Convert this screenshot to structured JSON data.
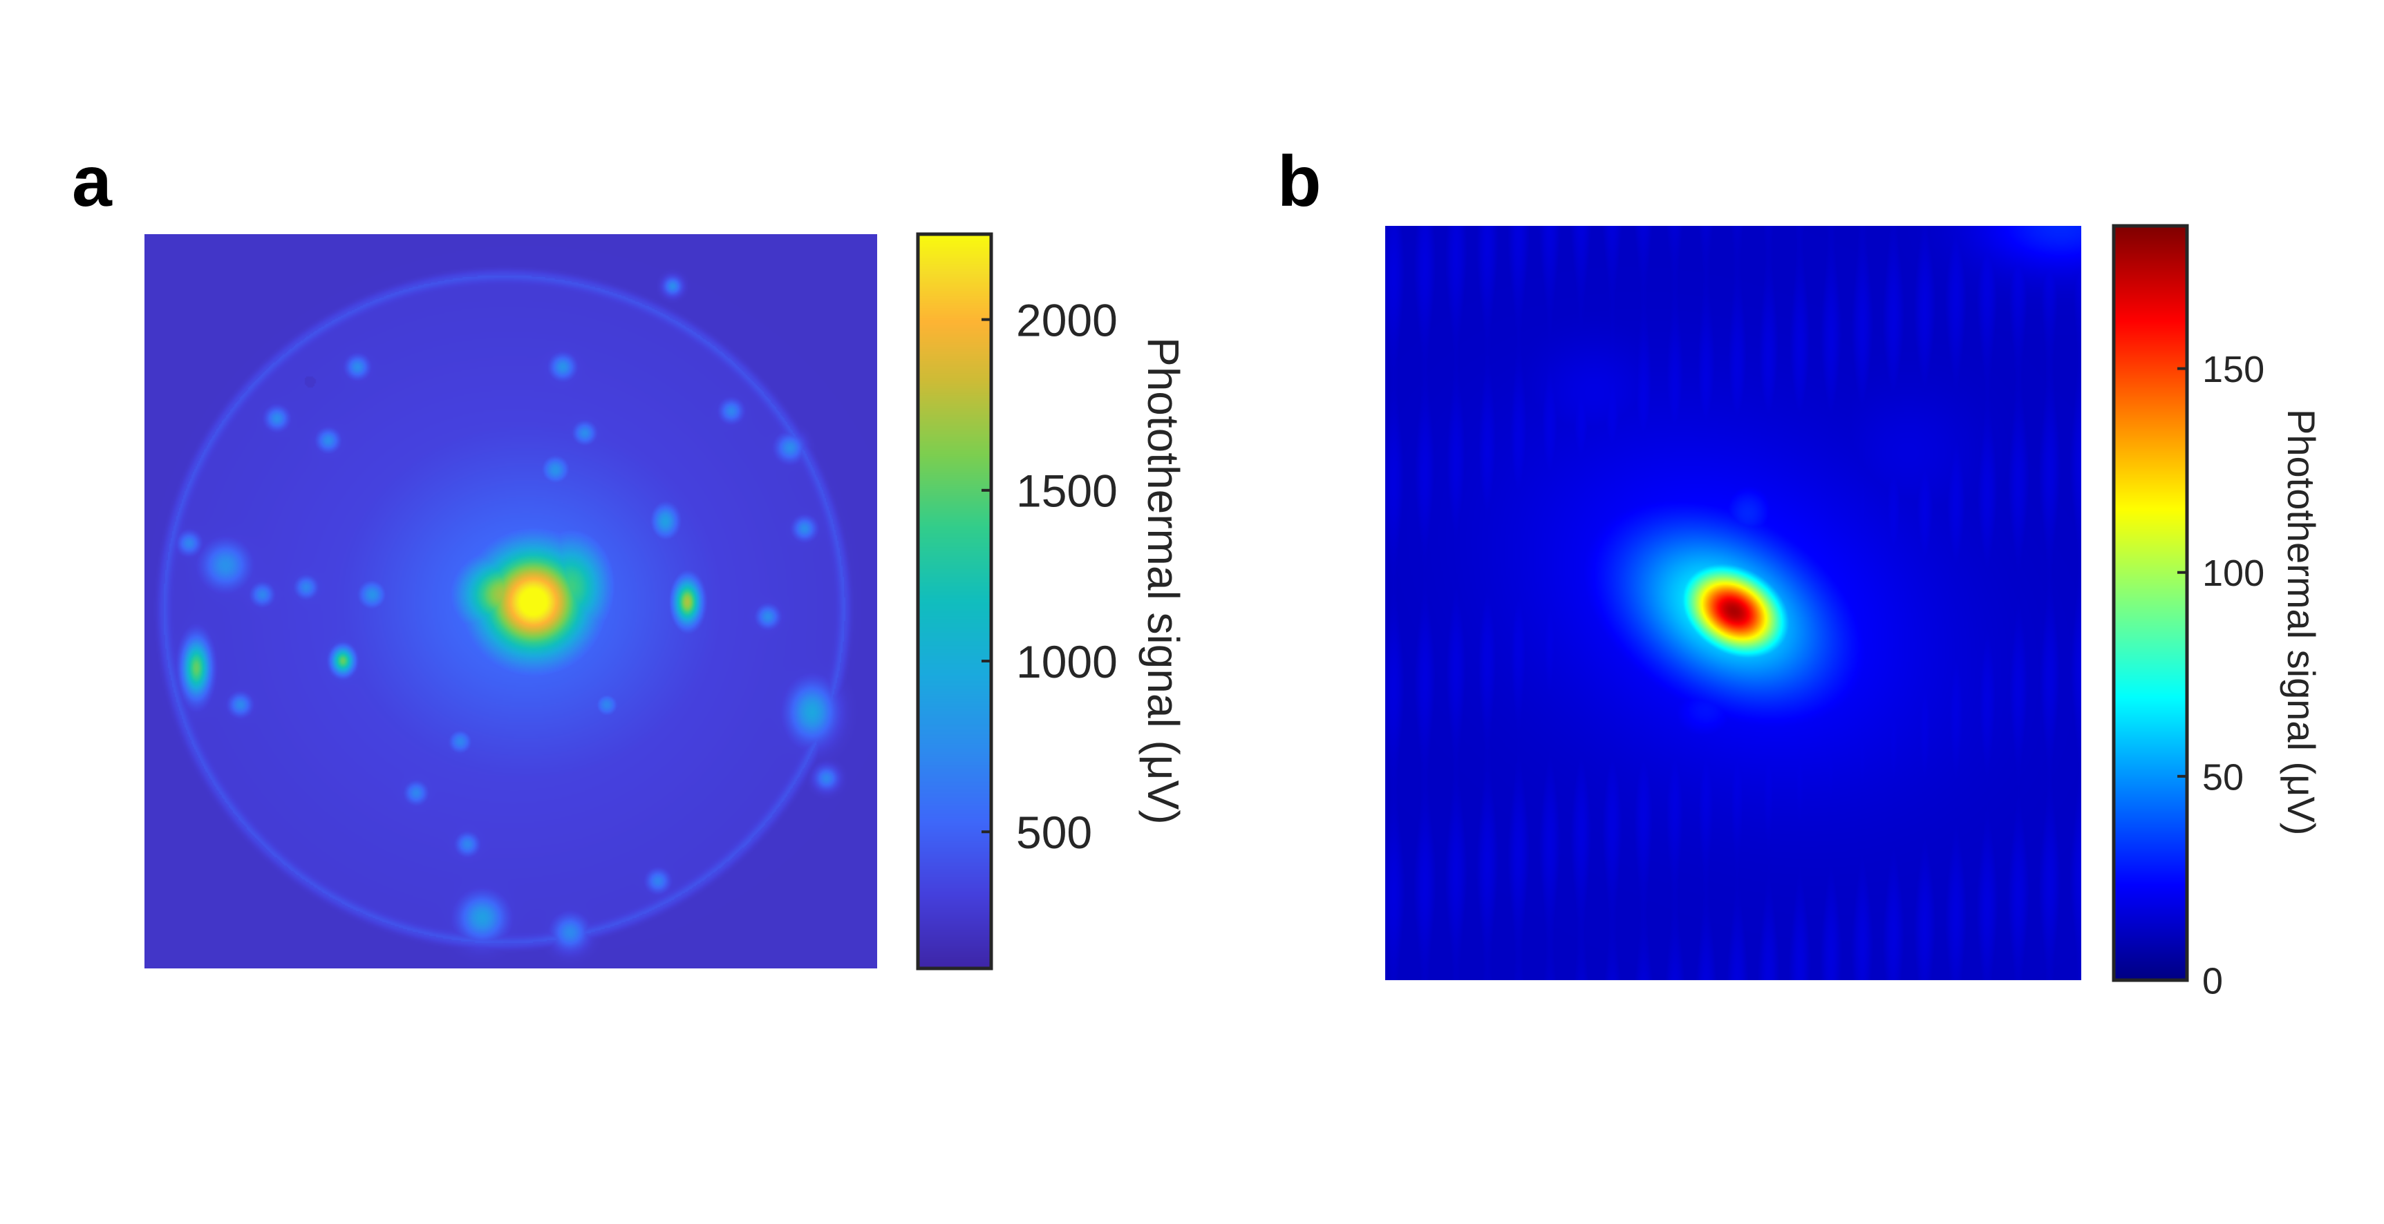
{
  "chart_data": [
    {
      "type": "heatmap",
      "panel_label": "a",
      "colormap": "parula",
      "colorbar": {
        "label": "Photothermal signal (μV)",
        "ticks": [
          500,
          1000,
          1500,
          2000
        ],
        "range": [
          100,
          2250
        ]
      },
      "field": {
        "background": 230,
        "ring": {
          "cx": 0.49,
          "cy": 0.51,
          "rx": 0.465,
          "ry": 0.455,
          "value": 370
        },
        "inner_glow": {
          "value": 120
        },
        "hotspots": [
          {
            "x": 0.53,
            "y": 0.5,
            "sx": 0.05,
            "sy": 0.05,
            "value": 2150
          },
          {
            "x": 0.49,
            "y": 0.49,
            "sx": 0.04,
            "sy": 0.035,
            "value": 1500
          },
          {
            "x": 0.58,
            "y": 0.48,
            "sx": 0.035,
            "sy": 0.045,
            "value": 1200
          },
          {
            "x": 0.52,
            "y": 0.5,
            "sx": 0.16,
            "sy": 0.15,
            "value": 350
          },
          {
            "x": 0.74,
            "y": 0.5,
            "sx": 0.012,
            "sy": 0.02,
            "value": 1500
          },
          {
            "x": 0.07,
            "y": 0.59,
            "sx": 0.012,
            "sy": 0.025,
            "value": 1300
          },
          {
            "x": 0.27,
            "y": 0.58,
            "sx": 0.01,
            "sy": 0.012,
            "value": 1300
          },
          {
            "x": 0.11,
            "y": 0.45,
            "sx": 0.02,
            "sy": 0.02,
            "value": 550
          },
          {
            "x": 0.91,
            "y": 0.65,
            "sx": 0.02,
            "sy": 0.025,
            "value": 700
          },
          {
            "x": 0.71,
            "y": 0.39,
            "sx": 0.012,
            "sy": 0.015,
            "value": 650
          },
          {
            "x": 0.46,
            "y": 0.93,
            "sx": 0.02,
            "sy": 0.02,
            "value": 650
          },
          {
            "x": 0.58,
            "y": 0.95,
            "sx": 0.015,
            "sy": 0.015,
            "value": 500
          },
          {
            "x": 0.31,
            "y": 0.49,
            "sx": 0.012,
            "sy": 0.012,
            "value": 560
          },
          {
            "x": 0.56,
            "y": 0.32,
            "sx": 0.012,
            "sy": 0.012,
            "value": 560
          },
          {
            "x": 0.6,
            "y": 0.27,
            "sx": 0.01,
            "sy": 0.01,
            "value": 520
          },
          {
            "x": 0.18,
            "y": 0.25,
            "sx": 0.01,
            "sy": 0.01,
            "value": 520
          },
          {
            "x": 0.25,
            "y": 0.28,
            "sx": 0.01,
            "sy": 0.01,
            "value": 520
          },
          {
            "x": 0.29,
            "y": 0.18,
            "sx": 0.01,
            "sy": 0.01,
            "value": 520
          },
          {
            "x": 0.57,
            "y": 0.18,
            "sx": 0.011,
            "sy": 0.011,
            "value": 560
          },
          {
            "x": 0.72,
            "y": 0.07,
            "sx": 0.008,
            "sy": 0.008,
            "value": 520
          },
          {
            "x": 0.88,
            "y": 0.29,
            "sx": 0.012,
            "sy": 0.012,
            "value": 520
          },
          {
            "x": 0.9,
            "y": 0.4,
            "sx": 0.01,
            "sy": 0.01,
            "value": 520
          },
          {
            "x": 0.85,
            "y": 0.52,
            "sx": 0.01,
            "sy": 0.01,
            "value": 520
          },
          {
            "x": 0.63,
            "y": 0.64,
            "sx": 0.01,
            "sy": 0.01,
            "value": 480
          },
          {
            "x": 0.43,
            "y": 0.69,
            "sx": 0.01,
            "sy": 0.01,
            "value": 480
          },
          {
            "x": 0.37,
            "y": 0.76,
            "sx": 0.01,
            "sy": 0.01,
            "value": 480
          },
          {
            "x": 0.44,
            "y": 0.83,
            "sx": 0.01,
            "sy": 0.01,
            "value": 480
          },
          {
            "x": 0.13,
            "y": 0.64,
            "sx": 0.01,
            "sy": 0.01,
            "value": 500
          },
          {
            "x": 0.06,
            "y": 0.42,
            "sx": 0.01,
            "sy": 0.01,
            "value": 480
          },
          {
            "x": 0.22,
            "y": 0.48,
            "sx": 0.01,
            "sy": 0.01,
            "value": 480
          },
          {
            "x": 0.16,
            "y": 0.49,
            "sx": 0.01,
            "sy": 0.01,
            "value": 480
          },
          {
            "x": 0.93,
            "y": 0.74,
            "sx": 0.01,
            "sy": 0.01,
            "value": 480
          },
          {
            "x": 0.7,
            "y": 0.88,
            "sx": 0.01,
            "sy": 0.01,
            "value": 460
          },
          {
            "x": 0.8,
            "y": 0.24,
            "sx": 0.01,
            "sy": 0.01,
            "value": 480
          }
        ],
        "dark_spot": {
          "x": 0.225,
          "y": 0.2,
          "value": 60
        }
      }
    },
    {
      "type": "heatmap",
      "panel_label": "b",
      "colormap": "jet",
      "colorbar": {
        "label": "Photothermal signal (μV)",
        "ticks": [
          0,
          50,
          100,
          150
        ],
        "range": [
          0,
          185
        ]
      },
      "field": {
        "background": 12,
        "hotspots": [
          {
            "x": 0.5,
            "y": 0.51,
            "sx": 0.05,
            "sy": 0.035,
            "rotation_deg": 25,
            "value": 165
          },
          {
            "x": 0.49,
            "y": 0.51,
            "sx": 0.11,
            "sy": 0.07,
            "rotation_deg": 25,
            "value": 60
          },
          {
            "x": 0.5,
            "y": 0.5,
            "sx": 0.2,
            "sy": 0.14,
            "rotation_deg": 25,
            "value": 16
          },
          {
            "x": 0.52,
            "y": 0.38,
            "sx": 0.03,
            "sy": 0.03,
            "value": 18
          },
          {
            "x": 0.46,
            "y": 0.64,
            "sx": 0.04,
            "sy": 0.03,
            "value": 14
          },
          {
            "x": 0.33,
            "y": 0.47,
            "sx": 0.04,
            "sy": 0.04,
            "value": 8
          },
          {
            "x": 0.3,
            "y": 0.22,
            "sx": 0.06,
            "sy": 0.05,
            "value": 6
          },
          {
            "x": 0.75,
            "y": 0.3,
            "sx": 0.07,
            "sy": 0.06,
            "value": 5
          },
          {
            "x": 0.97,
            "y": 0.0,
            "sx": 0.08,
            "sy": 0.04,
            "value": 18
          }
        ]
      }
    }
  ]
}
